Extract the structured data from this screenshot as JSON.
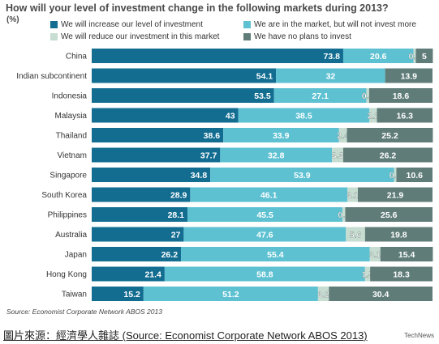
{
  "chart_data": {
    "type": "bar",
    "stacked": true,
    "orientation": "horizontal",
    "title": "How will your level of investment change in the following markets during 2013?",
    "unit": "(%)",
    "categories": [
      "China",
      "Indian subcontinent",
      "Indonesia",
      "Malaysia",
      "Thailand",
      "Vietnam",
      "Singapore",
      "South Korea",
      "Philippines",
      "Australia",
      "Japan",
      "Hong Kong",
      "Taiwan"
    ],
    "series": [
      {
        "name": "We will increase our level of investment",
        "color": "#136d91",
        "values": [
          73.8,
          54.1,
          53.5,
          43,
          38.6,
          37.7,
          34.8,
          28.9,
          28.1,
          27,
          26.2,
          21.4,
          15.2
        ],
        "labels": [
          "73.8",
          "54.1",
          "53.5",
          "43",
          "38.6",
          "37.7",
          "34.8",
          "28.9",
          "28.1",
          "27",
          "26.2",
          "21.4",
          "15.2"
        ]
      },
      {
        "name": "We are in the market, but will not invest more",
        "color": "#5dc1d2",
        "values": [
          20.6,
          32,
          27.1,
          38.5,
          33.9,
          32.8,
          53.9,
          46.1,
          45.5,
          47.6,
          55.4,
          58.8,
          51.2
        ],
        "labels": [
          "20.6",
          "32",
          "27.1",
          "38.5",
          "33.9",
          "32.8",
          "53.9",
          "46.1",
          "45.5",
          "47.6",
          "55.4",
          "58.8",
          "51.2"
        ]
      },
      {
        "name": "We will reduce our investment in this market",
        "color": "#c7ddd1",
        "values": [
          0.7,
          0,
          0.8,
          2.2,
          2.4,
          3.3,
          0.7,
          3.1,
          0.8,
          5.6,
          3.1,
          1.5,
          3.2
        ],
        "labels": [
          "0.7",
          "",
          "0.8",
          "2.2",
          "2.4",
          "3.3",
          "0.7",
          "3.1",
          "0.8",
          "5.6",
          "3.1",
          "1.5",
          "3.2"
        ]
      },
      {
        "name": "We have no plans to invest",
        "color": "#5f7c78",
        "values": [
          5,
          13.9,
          18.6,
          16.3,
          25.2,
          26.2,
          10.6,
          21.9,
          25.6,
          19.8,
          15.4,
          18.3,
          30.4
        ],
        "labels": [
          "5",
          "13.9",
          "18.6",
          "16.3",
          "25.2",
          "26.2",
          "10.6",
          "21.9",
          "25.6",
          "19.8",
          "15.4",
          "18.3",
          "30.4"
        ]
      }
    ],
    "xlim": [
      0,
      100
    ],
    "legend_position": "top",
    "grid": false
  },
  "source_text": "Source: Economist Corporate Network ABOS 2013",
  "caption_text": "圖片來源：經濟學人雜誌 (Source: Economist Corporate Network ABOS 2013)",
  "watermark_text": "TechNews"
}
